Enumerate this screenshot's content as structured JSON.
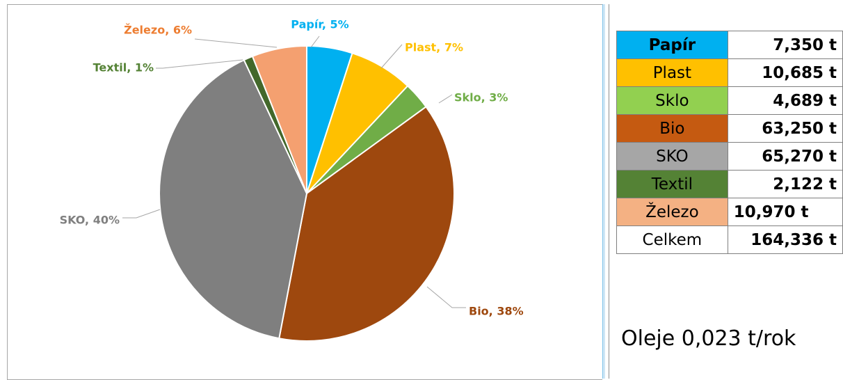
{
  "chart_data": {
    "type": "pie",
    "slices": [
      {
        "label": "Papír, 5%",
        "value": 5,
        "color": "#00b0f0"
      },
      {
        "label": "Plast, 7%",
        "value": 7,
        "color": "#ffc000"
      },
      {
        "label": "Sklo, 3%",
        "value": 3,
        "color": "#70ad47"
      },
      {
        "label": "Bio, 38%",
        "value": 38,
        "color": "#9e480e"
      },
      {
        "label": "SKO, 40%",
        "value": 40,
        "color": "#7f7f7f"
      },
      {
        "label": "Textil, 1%",
        "value": 1,
        "color": "#43682b"
      },
      {
        "label": "Železo, 6%",
        "value": 6,
        "color": "#f4a070"
      }
    ],
    "label_colors": {
      "Papír": "#00b0f0",
      "Plast": "#ffc000",
      "Sklo": "#70ad47",
      "Bio": "#9e480e",
      "SKO": "#7f7f7f",
      "Textil": "#548235",
      "Železo": "#ed7d31"
    }
  },
  "table": {
    "rows": [
      {
        "category": "Papír",
        "value": "7,350 t",
        "bg": "#00b0f0"
      },
      {
        "category": "Plast",
        "value": "10,685 t",
        "bg": "#ffc000"
      },
      {
        "category": "Sklo",
        "value": "4,689 t",
        "bg": "#92d050"
      },
      {
        "category": "Bio",
        "value": "63,250 t",
        "bg": "#c55a11"
      },
      {
        "category": "SKO",
        "value": "65,270 t",
        "bg": "#a6a6a6"
      },
      {
        "category": "Textil",
        "value": "2,122 t",
        "bg": "#548235"
      },
      {
        "category": "Železo",
        "value": "10,970 t",
        "bg": "#f4b183"
      },
      {
        "category": "Celkem",
        "value": "164,336 t",
        "bg": "#ffffff"
      }
    ]
  },
  "note": "Oleje 0,023 t/rok"
}
